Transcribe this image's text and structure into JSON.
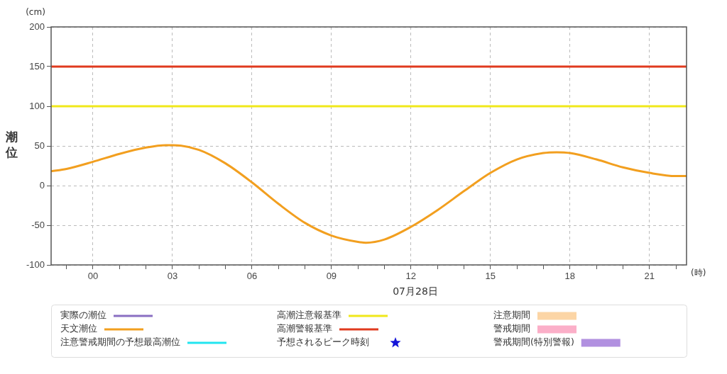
{
  "chart_data": {
    "type": "line",
    "xlabel": "(時)",
    "ylabel": "潮位",
    "annotations": [
      "(cm)",
      "07月28日"
    ],
    "xlim": [
      -1.58,
      22.4
    ],
    "xticks": [
      {
        "value": -1,
        "label": null
      },
      {
        "value": 0,
        "label": "00"
      },
      {
        "value": 1,
        "label": null
      },
      {
        "value": 2,
        "label": null
      },
      {
        "value": 3,
        "label": "03"
      },
      {
        "value": 4,
        "label": null
      },
      {
        "value": 5,
        "label": null
      },
      {
        "value": 6,
        "label": "06"
      },
      {
        "value": 7,
        "label": null
      },
      {
        "value": 8,
        "label": null
      },
      {
        "value": 9,
        "label": "09"
      },
      {
        "value": 10,
        "label": null
      },
      {
        "value": 11,
        "label": null
      },
      {
        "value": 12,
        "label": "12"
      },
      {
        "value": 13,
        "label": null
      },
      {
        "value": 14,
        "label": null
      },
      {
        "value": 15,
        "label": "15"
      },
      {
        "value": 16,
        "label": null
      },
      {
        "value": 17,
        "label": null
      },
      {
        "value": 18,
        "label": "18"
      },
      {
        "value": 19,
        "label": null
      },
      {
        "value": 20,
        "label": null
      },
      {
        "value": 21,
        "label": "21"
      },
      {
        "value": 22,
        "label": null
      }
    ],
    "ylim": [
      -100,
      200
    ],
    "yticks": [
      -100,
      -50,
      0,
      50,
      100,
      150,
      200
    ],
    "grid": true,
    "legend": "bottom",
    "marker": "none",
    "series": [
      {
        "name": "実際の潮位",
        "color": "#8a6fc2"
      },
      {
        "name": "天文潮位",
        "color": "#f29f1f",
        "x": [
          -1.58,
          -1,
          0,
          1,
          2,
          2.75,
          3,
          4,
          5,
          6,
          7,
          8,
          9,
          10,
          10.3,
          11,
          12,
          13,
          14,
          15,
          16,
          17,
          17.5,
          18,
          19,
          20,
          21,
          22,
          22.4
        ],
        "values": [
          18,
          21,
          30,
          40,
          48,
          51,
          51,
          45,
          28,
          4,
          -23,
          -47,
          -63,
          -71,
          -72,
          -68,
          -52,
          -31,
          -7,
          16,
          33,
          41,
          42,
          41,
          33,
          23,
          16,
          12,
          12
        ]
      },
      {
        "name": "注意警戒期間の予想最高潮位",
        "color": "#22e5f0"
      },
      {
        "name": "高潮注意報基準",
        "color": "#f0e81a",
        "x": [
          -1.58,
          22.4
        ],
        "values": [
          100,
          100
        ]
      },
      {
        "name": "高潮警報基準",
        "color": "#e03a1e",
        "x": [
          -1.58,
          22.4
        ],
        "values": [
          150,
          150
        ]
      },
      {
        "name": "予想されるピーク時刻",
        "type": "scatter",
        "marker": "star",
        "color": "#1414d8"
      },
      {
        "name": "注意期間",
        "type": "area",
        "color": "#fcd5a5"
      },
      {
        "name": "警戒期間",
        "type": "area",
        "color": "#fbafc8"
      },
      {
        "name": "警戒期間(特別警報)",
        "type": "area",
        "color": "#b190e0"
      }
    ]
  }
}
